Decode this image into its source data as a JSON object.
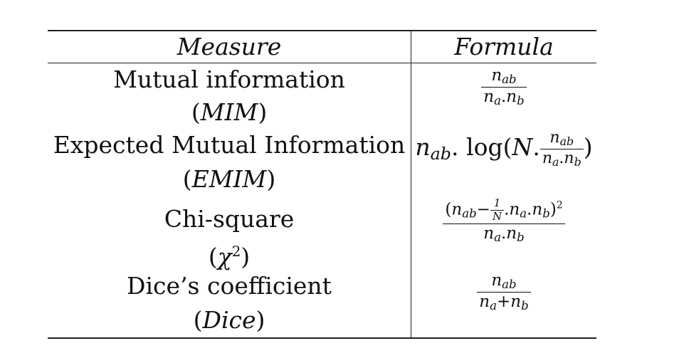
{
  "table": {
    "header": {
      "measure": "Measure",
      "formula": "Formula"
    },
    "rows": [
      {
        "name": "Mutual information",
        "abbr": "MIM",
        "formula": {
          "num_base": "n",
          "num_sub": "ab",
          "den_a": "n",
          "den_a_sub": "a",
          "den_op": ".",
          "den_b": "n",
          "den_b_sub": "b"
        }
      },
      {
        "name": "Expected Mutual Information",
        "abbr": "EMIM",
        "formula": {
          "lead_base": "n",
          "lead_sub": "ab",
          "dot": ".",
          "log": "log",
          "N": "N",
          "num_base": "n",
          "num_sub": "ab",
          "den_a": "n",
          "den_a_sub": "a",
          "den_op": ".",
          "den_b": "n",
          "den_b_sub": "b"
        }
      },
      {
        "name": "Chi-square",
        "abbr": "χ",
        "abbr_sup": "2",
        "formula": {
          "one": "1",
          "N": "N",
          "minus": "−",
          "n": "n",
          "ab": "ab",
          "a": "a",
          "b": "b",
          "power": "2"
        }
      },
      {
        "name": "Dice’s coefficient",
        "abbr": "Dice",
        "formula": {
          "num_base": "n",
          "num_sub": "ab",
          "den_a": "n",
          "den_a_sub": "a",
          "den_op": "+",
          "den_b": "n",
          "den_b_sub": "b"
        }
      }
    ]
  }
}
